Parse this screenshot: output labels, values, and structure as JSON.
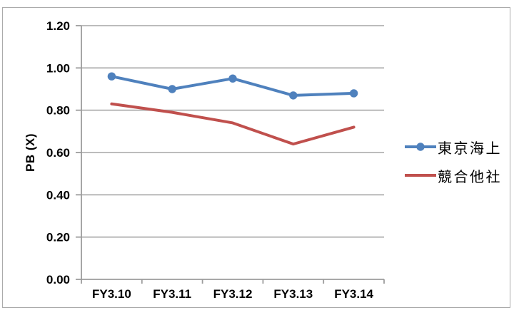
{
  "chart_data": {
    "type": "line",
    "title": "",
    "ylabel": "PB (X)",
    "xlabel": "",
    "categories": [
      "FY3.10",
      "FY3.11",
      "FY3.12",
      "FY3.13",
      "FY3.14"
    ],
    "series": [
      {
        "name": "東京海上",
        "color": "#4F81BD",
        "marker": "circle",
        "values": [
          0.96,
          0.9,
          0.95,
          0.87,
          0.88
        ]
      },
      {
        "name": "競合他社",
        "color": "#C0504D",
        "marker": "none",
        "values": [
          0.83,
          0.79,
          0.74,
          0.64,
          0.72
        ]
      }
    ],
    "ylim": [
      0,
      1.2
    ],
    "y_ticks": [
      {
        "value": 0.0,
        "label": "0.00"
      },
      {
        "value": 0.2,
        "label": "0.20"
      },
      {
        "value": 0.4,
        "label": "0.40"
      },
      {
        "value": 0.6,
        "label": "0.60"
      },
      {
        "value": 0.8,
        "label": "0.80"
      },
      {
        "value": 1.0,
        "label": "1.00"
      },
      {
        "value": 1.2,
        "label": "1.20"
      }
    ],
    "grid": true,
    "legend_position": "right",
    "colors": {
      "gridline": "#B3B3B3",
      "axis": "#9C9C9C",
      "frame_border": "#ABABAB",
      "text": "#000000",
      "background": "#FFFFFF"
    }
  }
}
